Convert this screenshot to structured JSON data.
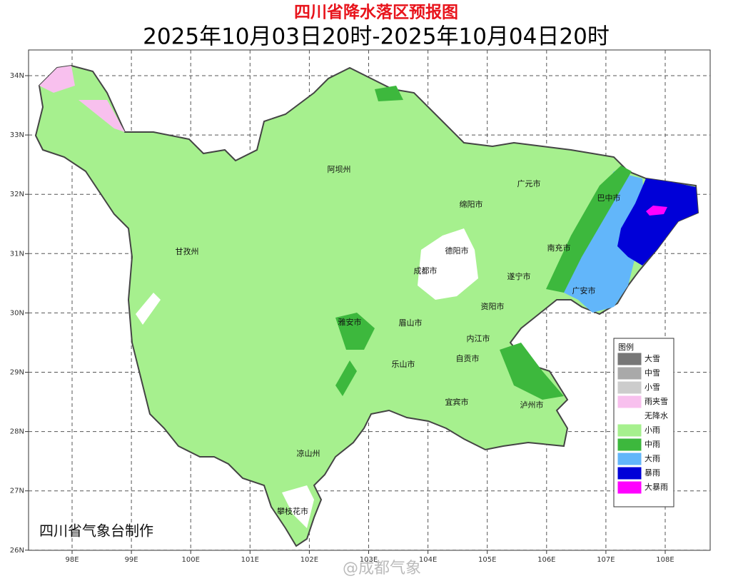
{
  "header": {
    "title": "四川省降水落区预报图",
    "subtitle": "2025年10月03日20时-2025年10月04日20时"
  },
  "map": {
    "lon_ticks": [
      {
        "value": 98,
        "label": "98E"
      },
      {
        "value": 99,
        "label": "99E"
      },
      {
        "value": 100,
        "label": "100E"
      },
      {
        "value": 101,
        "label": "101E"
      },
      {
        "value": 102,
        "label": "102E"
      },
      {
        "value": 103,
        "label": "103E"
      },
      {
        "value": 104,
        "label": "104E"
      },
      {
        "value": 105,
        "label": "105E"
      },
      {
        "value": 106,
        "label": "106E"
      },
      {
        "value": 107,
        "label": "107E"
      },
      {
        "value": 108,
        "label": "108E"
      }
    ],
    "lat_ticks": [
      {
        "value": 34,
        "label": "34N"
      },
      {
        "value": 33,
        "label": "33N"
      },
      {
        "value": 32,
        "label": "32N"
      },
      {
        "value": 31,
        "label": "31N"
      },
      {
        "value": 30,
        "label": "30N"
      },
      {
        "value": 29,
        "label": "29N"
      },
      {
        "value": 28,
        "label": "28N"
      },
      {
        "value": 27,
        "label": "27N"
      },
      {
        "value": 26,
        "label": "26N"
      }
    ],
    "cities": [
      "阿坝州",
      "甘孜州",
      "广元市",
      "巴中市",
      "绵阳市",
      "德阳市",
      "成都市",
      "南充市",
      "遂宁市",
      "广安市",
      "资阳市",
      "雅安市",
      "眉山市",
      "内江市",
      "自贡市",
      "乐山市",
      "宜宾市",
      "泸州市",
      "凉山州",
      "攀枝花市"
    ],
    "credit": "四川省气象台制作"
  },
  "legend": {
    "title": "图例",
    "items": [
      {
        "label": "大雪",
        "color": "#777777"
      },
      {
        "label": "中雪",
        "color": "#a9a9a9"
      },
      {
        "label": "小雪",
        "color": "#cccccc"
      },
      {
        "label": "雨夹雪",
        "color": "#f8c0ee"
      },
      {
        "label": "无降水",
        "color": "#ffffff"
      },
      {
        "label": "小雨",
        "color": "#a6f08e"
      },
      {
        "label": "中雨",
        "color": "#3db83d"
      },
      {
        "label": "大雨",
        "color": "#62b6fa"
      },
      {
        "label": "暴雨",
        "color": "#0000d8"
      },
      {
        "label": "大暴雨",
        "color": "#ff00ff"
      }
    ]
  },
  "watermark": "@成都气象"
}
